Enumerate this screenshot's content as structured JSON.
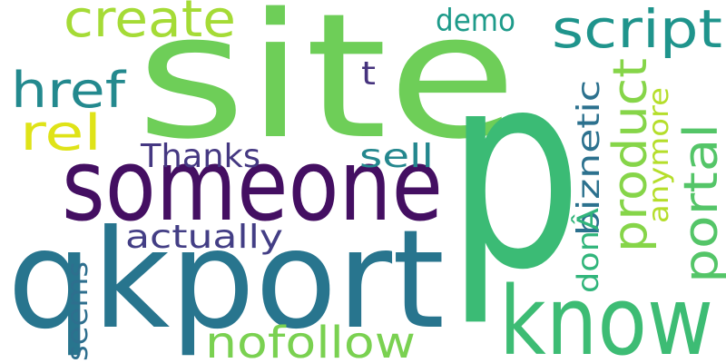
{
  "cloud": {
    "background": "#ffffff",
    "words": [
      {
        "text": "site",
        "color": "#6ece58"
      },
      {
        "text": "p",
        "color": "#3bbb75"
      },
      {
        "text": "someone",
        "color": "#440f62"
      },
      {
        "text": "qkport",
        "color": "#28758e"
      },
      {
        "text": "know",
        "color": "#3dbc74"
      },
      {
        "text": "create",
        "color": "#a5db36"
      },
      {
        "text": "script",
        "color": "#1f948c"
      },
      {
        "text": "href",
        "color": "#23898e"
      },
      {
        "text": "rel",
        "color": "#dfe318"
      },
      {
        "text": "demo",
        "color": "#1e9b8a"
      },
      {
        "text": "t",
        "color": "#46337e"
      },
      {
        "text": "Thanks",
        "color": "#453882"
      },
      {
        "text": "sell",
        "color": "#24878e"
      },
      {
        "text": "actually",
        "color": "#433e85"
      },
      {
        "text": "product",
        "color": "#86d549"
      },
      {
        "text": "portal",
        "color": "#54c568"
      },
      {
        "text": "biznetic",
        "color": "#2c718e"
      },
      {
        "text": "anymore",
        "color": "#b5de2b"
      },
      {
        "text": "donÂ",
        "color": "#31b57b"
      },
      {
        "text": "seems",
        "color": "#2e6f8e"
      },
      {
        "text": "nofollow",
        "color": "#7ad151"
      }
    ]
  }
}
